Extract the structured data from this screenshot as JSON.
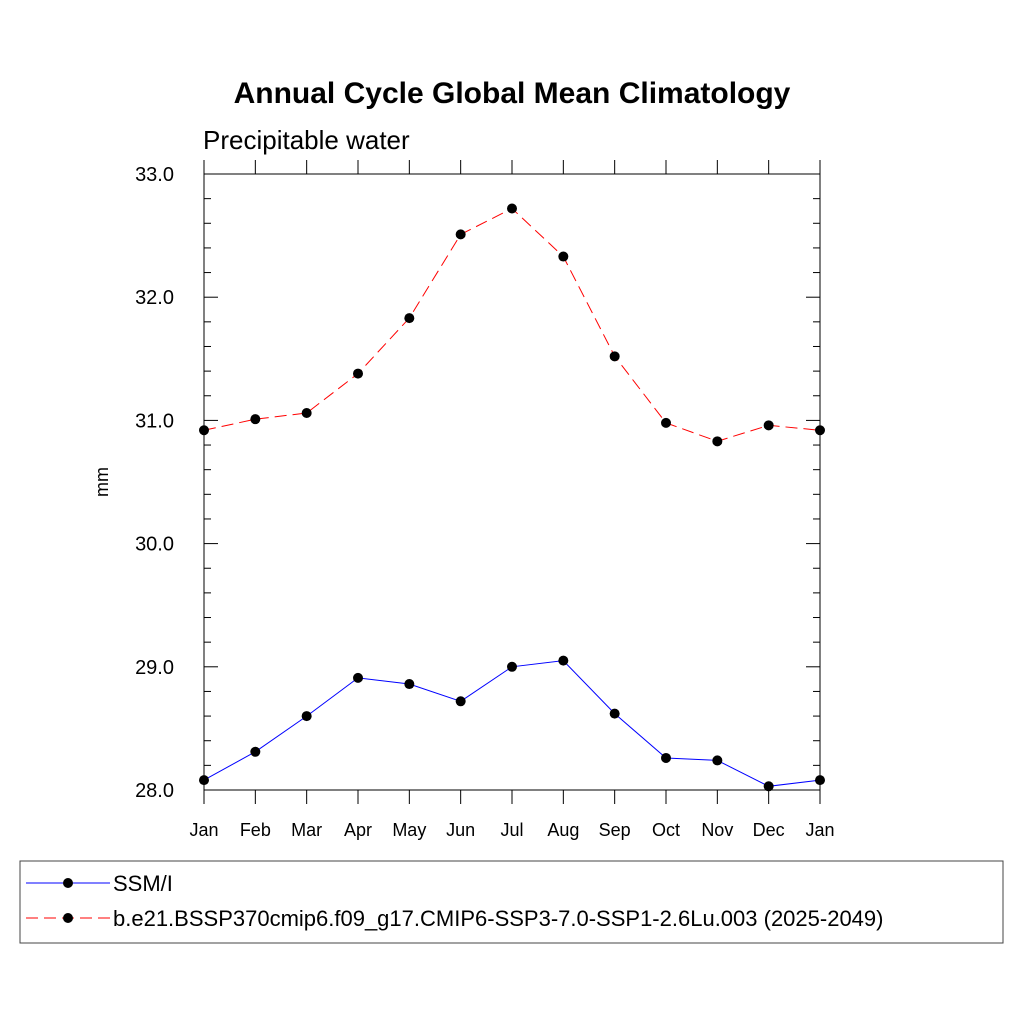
{
  "chart_data": {
    "type": "line",
    "title": "Annual Cycle Global Mean Climatology",
    "subtitle": "Precipitable water",
    "xlabel": "",
    "ylabel": "mm",
    "categories": [
      "Jan",
      "Feb",
      "Mar",
      "Apr",
      "May",
      "Jun",
      "Jul",
      "Aug",
      "Sep",
      "Oct",
      "Nov",
      "Dec",
      "Jan"
    ],
    "ylim": [
      28.0,
      33.0
    ],
    "yticks": [
      "28.0",
      "29.0",
      "30.0",
      "31.0",
      "32.0",
      "33.0"
    ],
    "grid": false,
    "legend_position": "bottom",
    "series": [
      {
        "name": "SSM/I",
        "color": "#0000ff",
        "line_style": "solid",
        "marker": "filled-circle",
        "values": [
          28.08,
          28.31,
          28.6,
          28.91,
          28.86,
          28.72,
          29.0,
          29.05,
          28.62,
          28.26,
          28.24,
          28.03,
          28.08
        ]
      },
      {
        "name": "b.e21.BSSP370cmip6.f09_g17.CMIP6-SSP3-7.0-SSP1-2.6Lu.003 (2025-2049)",
        "color": "#ff0000",
        "line_style": "dashed",
        "marker": "filled-circle",
        "values": [
          30.92,
          31.01,
          31.06,
          31.38,
          31.83,
          32.51,
          32.72,
          32.33,
          31.52,
          30.98,
          30.83,
          30.96,
          30.92
        ]
      }
    ]
  }
}
